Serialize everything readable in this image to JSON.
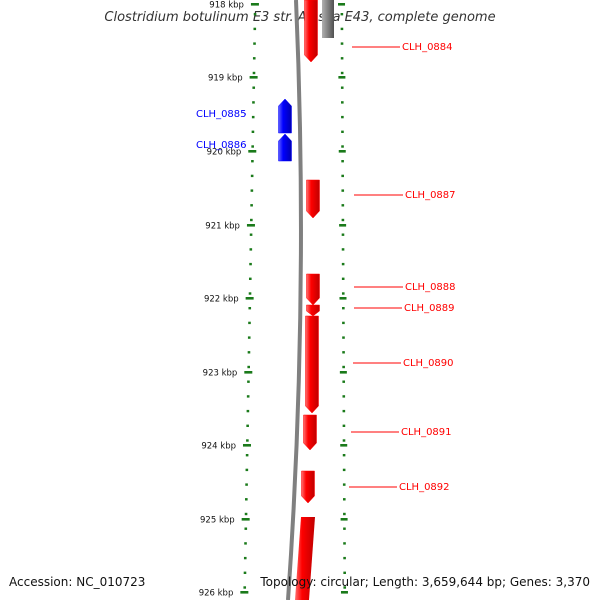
{
  "title": "Clostridium botulinum E3 str. Alaska E43, complete genome",
  "footer": {
    "accession": "Accession: NC_010723",
    "topology": "Topology: circular; Length: 3,659,644 bp; Genes: 3,370"
  },
  "colors": {
    "forward_gene": "#0000ff",
    "reverse_gene": "#ff0000",
    "ticks": "#1a7a1a",
    "backbone": "#808080"
  },
  "scale": {
    "labels": [
      "918 kbp",
      "919 kbp",
      "920 kbp",
      "921 kbp",
      "922 kbp",
      "923 kbp",
      "924 kbp",
      "925 kbp",
      "926 kbp"
    ]
  },
  "genes": [
    {
      "label": "CLH_0884",
      "strand": "reverse"
    },
    {
      "label": "CLH_0885",
      "strand": "forward"
    },
    {
      "label": "CLH_0886",
      "strand": "forward"
    },
    {
      "label": "CLH_0887",
      "strand": "reverse"
    },
    {
      "label": "CLH_0888",
      "strand": "reverse"
    },
    {
      "label": "CLH_0889",
      "strand": "reverse"
    },
    {
      "label": "CLH_0890",
      "strand": "reverse"
    },
    {
      "label": "CLH_0891",
      "strand": "reverse"
    },
    {
      "label": "CLH_0892",
      "strand": "reverse"
    }
  ]
}
